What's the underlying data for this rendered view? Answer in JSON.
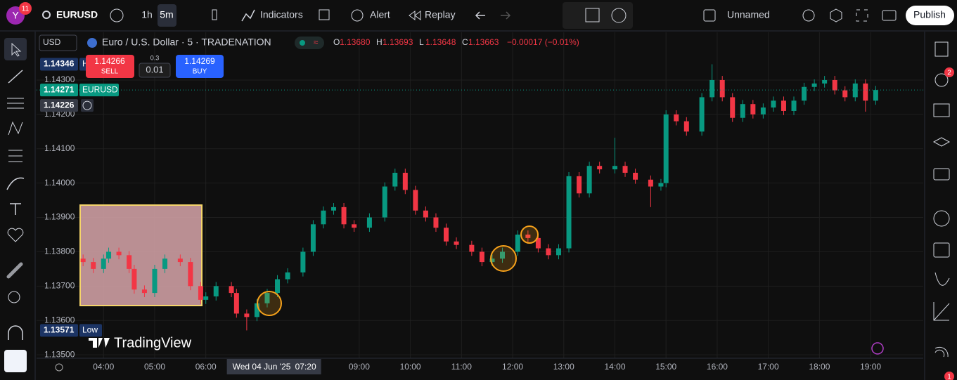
{
  "toolbar": {
    "avatar": "Y",
    "badge": "11",
    "symbol": "EURUSD",
    "intervals": [
      "1h",
      "5m"
    ],
    "buttons": [
      "Indicators",
      "Alert",
      "Replay"
    ],
    "layout": "Unnamed",
    "publish": "Publish"
  },
  "currency": "USD",
  "right_badges": [
    "2",
    "1"
  ],
  "trade": {
    "sell_price": "1.14266",
    "sell": "SELL",
    "quantity_step": "0.3",
    "quantity": "0.01",
    "buy_price": "1.14269",
    "buy": "BUY"
  },
  "watermark": "TradingView",
  "chart_data": {
    "type": "candlestick",
    "title": "Euro / U.S. Dollar · 5 · TRADENATION",
    "ohlc_legend": [
      {
        "key": "O",
        "value": "1.13680"
      },
      {
        "key": "H",
        "value": "1.13693"
      },
      {
        "key": "L",
        "value": "1.13648"
      },
      {
        "key": "C",
        "value": "1.13663"
      }
    ],
    "change": "−0.00017 (−0.01%)",
    "up_color": "#089981",
    "down_color": "#f23645",
    "x": [
      3.6,
      3.8,
      4.0,
      4.1,
      4.3,
      4.5,
      4.6,
      4.8,
      5.0,
      5.2,
      5.5,
      5.7,
      5.9,
      6.0,
      6.2,
      6.5,
      6.6,
      6.8,
      7.0,
      7.2,
      7.4,
      7.6,
      7.9,
      8.1,
      8.3,
      8.5,
      8.7,
      8.9,
      9.2,
      9.5,
      9.7,
      9.9,
      10.1,
      10.3,
      10.5,
      10.7,
      10.9,
      11.2,
      11.4,
      11.6,
      11.8,
      12.1,
      12.3,
      12.5,
      12.7,
      12.9,
      13.1,
      13.3,
      13.5,
      13.7,
      14.0,
      14.2,
      14.4,
      14.7,
      14.9,
      15.0,
      15.2,
      15.4,
      15.7,
      15.9,
      16.1,
      16.3,
      16.5,
      16.7,
      16.9,
      17.1,
      17.3,
      17.5,
      17.7,
      17.9,
      18.1,
      18.3,
      18.5,
      18.7,
      18.9,
      19.1
    ],
    "open": [
      1.1378,
      1.1377,
      1.1375,
      1.1378,
      1.138,
      1.1379,
      1.1375,
      1.1369,
      1.1368,
      1.1375,
      1.1378,
      1.1377,
      1.137,
      1.1366,
      1.1367,
      1.137,
      1.1368,
      1.1362,
      1.1361,
      1.1365,
      1.1368,
      1.1372,
      1.1374,
      1.138,
      1.1388,
      1.1392,
      1.1393,
      1.1388,
      1.1387,
      1.139,
      1.1399,
      1.1403,
      1.1398,
      1.1392,
      1.139,
      1.1387,
      1.1383,
      1.1382,
      1.138,
      1.1377,
      1.1378,
      1.138,
      1.1385,
      1.1384,
      1.1381,
      1.1379,
      1.1381,
      1.1402,
      1.1397,
      1.1405,
      1.1404,
      1.1405,
      1.1403,
      1.1401,
      1.1399,
      1.14,
      1.142,
      1.1418,
      1.1415,
      1.1425,
      1.143,
      1.1425,
      1.1419,
      1.1423,
      1.142,
      1.1422,
      1.1424,
      1.1421,
      1.1424,
      1.1428,
      1.1429,
      1.143,
      1.1427,
      1.1425,
      1.1429,
      1.1424
    ],
    "high": [
      1.13792,
      1.13782,
      1.13792,
      1.13812,
      1.13812,
      1.13802,
      1.13762,
      1.13702,
      1.13762,
      1.13792,
      1.13792,
      1.13782,
      1.13712,
      1.13682,
      1.13712,
      1.13712,
      1.13692,
      1.13632,
      1.13662,
      1.13692,
      1.13732,
      1.13752,
      1.13812,
      1.13892,
      1.13932,
      1.13942,
      1.13942,
      1.13892,
      1.13912,
      1.14002,
      1.14042,
      1.14042,
      1.13992,
      1.13932,
      1.13912,
      1.13882,
      1.13842,
      1.13832,
      1.13812,
      1.13792,
      1.13812,
      1.13862,
      1.13862,
      1.13852,
      1.13822,
      1.13822,
      1.14032,
      1.14032,
      1.14062,
      1.14062,
      1.14132,
      1.14062,
      1.14042,
      1.14022,
      1.14012,
      1.14212,
      1.14212,
      1.14192,
      1.14262,
      1.14346,
      1.14312,
      1.14262,
      1.14242,
      1.14242,
      1.14232,
      1.14252,
      1.14252,
      1.14252,
      1.14292,
      1.14302,
      1.14312,
      1.14312,
      1.14282,
      1.14302,
      1.14302,
      1.14283
    ],
    "low": [
      1.13758,
      1.13738,
      1.13738,
      1.13768,
      1.13778,
      1.13738,
      1.13678,
      1.13668,
      1.13668,
      1.13738,
      1.13758,
      1.13688,
      1.13648,
      1.13648,
      1.13658,
      1.13668,
      1.13608,
      1.13571,
      1.13598,
      1.13638,
      1.13668,
      1.13708,
      1.13728,
      1.13788,
      1.13868,
      1.13908,
      1.13868,
      1.13858,
      1.13858,
      1.13888,
      1.13978,
      1.13968,
      1.13908,
      1.13888,
      1.13858,
      1.13818,
      1.13808,
      1.13788,
      1.13758,
      1.13758,
      1.13768,
      1.13788,
      1.13828,
      1.13798,
      1.13778,
      1.13778,
      1.13798,
      1.13958,
      1.13958,
      1.14028,
      1.14028,
      1.14018,
      1.13998,
      1.1393,
      1.13978,
      1.13988,
      1.14168,
      1.14138,
      1.14138,
      1.14238,
      1.14238,
      1.14178,
      1.14178,
      1.14188,
      1.14188,
      1.14208,
      1.14198,
      1.14198,
      1.14228,
      1.14268,
      1.14278,
      1.14258,
      1.14238,
      1.14238,
      1.14208,
      1.14228
    ],
    "close": [
      1.1377,
      1.1375,
      1.1378,
      1.138,
      1.1379,
      1.1375,
      1.1369,
      1.1368,
      1.1375,
      1.1378,
      1.1377,
      1.137,
      1.1366,
      1.1367,
      1.137,
      1.1368,
      1.1362,
      1.1361,
      1.1365,
      1.1368,
      1.1372,
      1.1374,
      1.138,
      1.1388,
      1.1392,
      1.1393,
      1.1388,
      1.1387,
      1.139,
      1.1399,
      1.1403,
      1.1398,
      1.1392,
      1.139,
      1.1387,
      1.1383,
      1.1382,
      1.138,
      1.1377,
      1.1378,
      1.138,
      1.1385,
      1.1384,
      1.1381,
      1.1379,
      1.1381,
      1.1402,
      1.1397,
      1.1405,
      1.1404,
      1.1405,
      1.1403,
      1.1401,
      1.1399,
      1.14,
      1.142,
      1.1418,
      1.1415,
      1.1425,
      1.143,
      1.1425,
      1.1419,
      1.1423,
      1.142,
      1.1422,
      1.1424,
      1.1421,
      1.1424,
      1.1428,
      1.1429,
      1.143,
      1.1427,
      1.1425,
      1.1429,
      1.1424,
      1.14271
    ],
    "xlim": [
      2.69,
      20.03
    ],
    "ylim": [
      1.1349,
      1.14439
    ],
    "xticks": [
      {
        "value": 4,
        "label": "04:00"
      },
      {
        "value": 5,
        "label": "05:00"
      },
      {
        "value": 6,
        "label": "06:00"
      },
      {
        "value": 9,
        "label": "09:00"
      },
      {
        "value": 10,
        "label": "10:00"
      },
      {
        "value": 11,
        "label": "11:00"
      },
      {
        "value": 12,
        "label": "12:00"
      },
      {
        "value": 13,
        "label": "13:00"
      },
      {
        "value": 14,
        "label": "14:00"
      },
      {
        "value": 15,
        "label": "15:00"
      },
      {
        "value": 16,
        "label": "16:00"
      },
      {
        "value": 17,
        "label": "17:00"
      },
      {
        "value": 18,
        "label": "18:00"
      },
      {
        "value": 19,
        "label": "19:00"
      }
    ],
    "yticks": [
      {
        "value": 1.135,
        "label": "1.13500"
      },
      {
        "value": 1.136,
        "label": "1.13600"
      },
      {
        "value": 1.137,
        "label": "1.13700"
      },
      {
        "value": 1.138,
        "label": "1.13800"
      },
      {
        "value": 1.139,
        "label": "1.13900"
      },
      {
        "value": 1.14,
        "label": "1.14000"
      },
      {
        "value": 1.141,
        "label": "1.14100"
      },
      {
        "value": 1.142,
        "label": "1.14200"
      },
      {
        "value": 1.143,
        "label": "1.14300"
      }
    ],
    "grid": true,
    "price_labels": [
      {
        "value": 1.14346,
        "label": "1.14346",
        "tag": "H",
        "color": "#1c3464"
      },
      {
        "value": 1.14271,
        "label": "1.14271",
        "tag": "EURUSD",
        "color": "#089981"
      },
      {
        "value": 1.14226,
        "label": "1.14226",
        "color": "#363a45"
      },
      {
        "value": 1.13571,
        "label": "1.13571",
        "tag": "Low",
        "color": "#1c3464"
      }
    ],
    "crosshair": {
      "value": 7.333,
      "date": "Wed 04 Jun '25",
      "time": "07:20"
    }
  }
}
